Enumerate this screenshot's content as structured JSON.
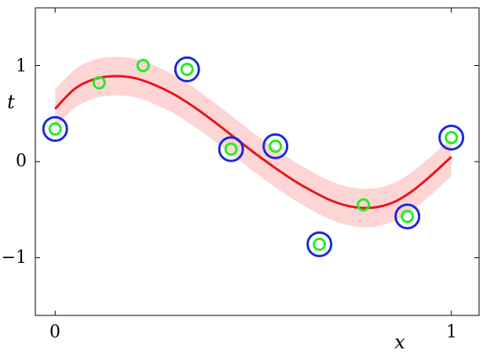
{
  "chart_data": {
    "type": "scatter",
    "xlabel": "x",
    "ylabel": "t",
    "xlim": [
      -0.05,
      1.07
    ],
    "ylim": [
      -1.6,
      1.6
    ],
    "xticks": [
      0,
      1
    ],
    "yticks": [
      -1,
      0,
      1
    ],
    "xtick_labels": [
      "0",
      "1"
    ],
    "ytick_labels": [
      "−1",
      "0",
      "1"
    ],
    "grid": false,
    "colors": {
      "mean": "#e8131b",
      "band": "#fdd5d5",
      "points": "#22ee22",
      "support": "#1a2bd8"
    },
    "mean_curve": {
      "x": [
        0,
        0.05,
        0.1,
        0.15,
        0.2,
        0.25,
        0.3,
        0.35,
        0.4,
        0.45,
        0.5,
        0.55,
        0.6,
        0.65,
        0.7,
        0.75,
        0.8,
        0.85,
        0.9,
        0.95,
        1.0
      ],
      "y": [
        0.55,
        0.76,
        0.86,
        0.89,
        0.87,
        0.8,
        0.7,
        0.57,
        0.42,
        0.26,
        0.1,
        -0.05,
        -0.19,
        -0.31,
        -0.41,
        -0.47,
        -0.48,
        -0.43,
        -0.31,
        -0.14,
        0.05
      ]
    },
    "band_halfwidth": 0.2,
    "points": [
      {
        "x": 0.0,
        "y": 0.34,
        "support": true
      },
      {
        "x": 0.111,
        "y": 0.82,
        "support": false
      },
      {
        "x": 0.222,
        "y": 1.0,
        "support": false
      },
      {
        "x": 0.333,
        "y": 0.96,
        "support": true
      },
      {
        "x": 0.444,
        "y": 0.13,
        "support": true
      },
      {
        "x": 0.556,
        "y": 0.16,
        "support": true
      },
      {
        "x": 0.667,
        "y": -0.86,
        "support": true
      },
      {
        "x": 0.778,
        "y": -0.45,
        "support": false
      },
      {
        "x": 0.889,
        "y": -0.57,
        "support": true
      },
      {
        "x": 1.0,
        "y": 0.25,
        "support": true
      }
    ]
  }
}
